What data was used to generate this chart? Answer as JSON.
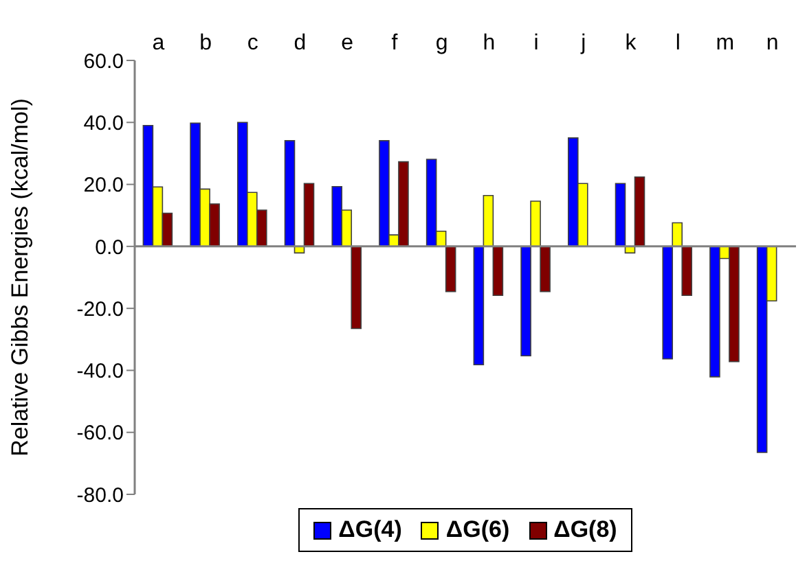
{
  "chart_data": {
    "type": "bar",
    "categories": [
      "a",
      "b",
      "c",
      "d",
      "e",
      "f",
      "g",
      "h",
      "i",
      "j",
      "k",
      "l",
      "m",
      "n"
    ],
    "ylabel": "Relative Gibbs Energies (kcal/mol)",
    "ylim": [
      -80,
      60
    ],
    "yticks": [
      {
        "value": -80,
        "label": "-80.0"
      },
      {
        "value": -60,
        "label": "-60.0"
      },
      {
        "value": -40,
        "label": "-40.0"
      },
      {
        "value": -20,
        "label": "-20.0"
      },
      {
        "value": 0,
        "label": "0.0"
      },
      {
        "value": 20,
        "label": "20.0"
      },
      {
        "value": 40,
        "label": "40.0"
      },
      {
        "value": 60,
        "label": "60.0"
      }
    ],
    "legend": "bottom",
    "series": [
      {
        "name": "ΔG(4)",
        "color": "#0000ff",
        "values": [
          39,
          39.8,
          40,
          34.1,
          19.3,
          34.1,
          28.1,
          -38.2,
          -35.3,
          35,
          20.3,
          -36.3,
          -42.1,
          -66.5
        ]
      },
      {
        "name": "ΔG(6)",
        "color": "#ffff00",
        "values": [
          19.2,
          18.5,
          17.4,
          -2.1,
          11.7,
          3.7,
          4.9,
          16.4,
          14.6,
          20.3,
          -2.1,
          7.6,
          -3.9,
          -17.6
        ]
      },
      {
        "name": "ΔG(8)",
        "color": "#800000",
        "values": [
          10.7,
          13.7,
          11.7,
          20.3,
          -26.5,
          27.3,
          -14.6,
          -15.8,
          -14.6,
          null,
          22.4,
          -15.8,
          -37.2,
          null
        ]
      }
    ]
  }
}
